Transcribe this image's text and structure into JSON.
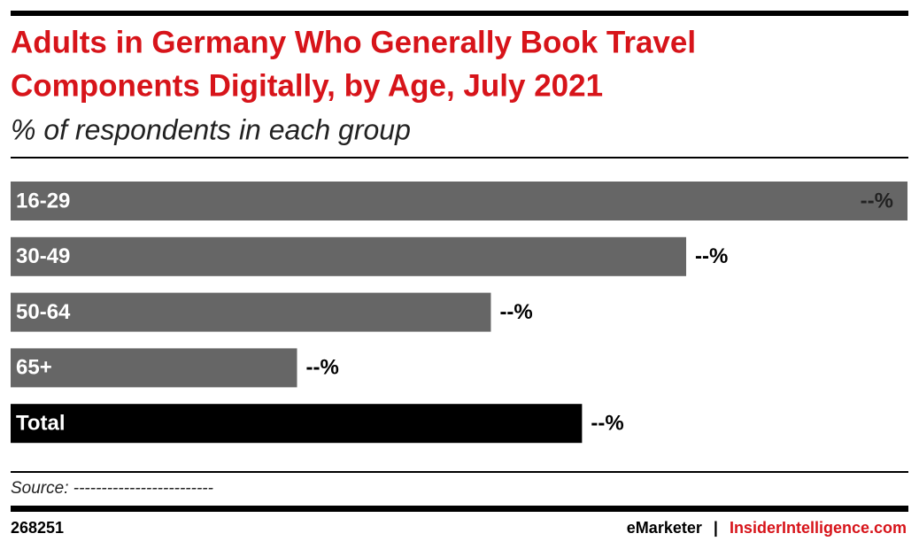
{
  "chart_data": {
    "type": "hbar",
    "title": [
      "Adults in Germany Who Generally Book Travel",
      "Components Digitally, by Age, July 2021"
    ],
    "subtitle": "% of respondents in each group",
    "categories": [
      "16-29",
      "30-49",
      "50-64",
      "65+",
      "Total"
    ],
    "values": [
      62,
      46.7,
      33.2,
      19.8,
      39.5
    ],
    "value_labels": [
      "--%",
      "--%",
      "--%",
      "--%",
      "--%"
    ],
    "colors": [
      "#666666",
      "#666666",
      "#666666",
      "#666666",
      "#000000"
    ],
    "xlim": [
      0,
      62
    ],
    "source": "Source: -------------------------",
    "chart_id": "268251",
    "brand": [
      "eMarketer",
      "|",
      "InsiderIntelligence.com"
    ]
  }
}
